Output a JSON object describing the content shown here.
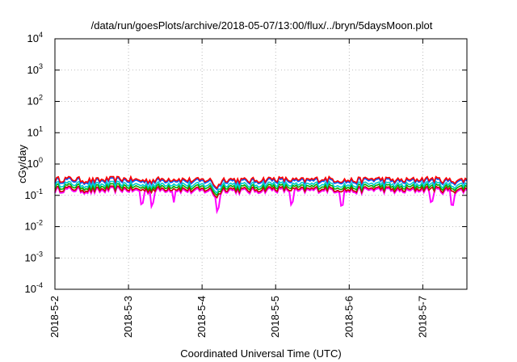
{
  "chart_data": {
    "type": "line",
    "title": "/data/run/goesPlots/archive/2018-05-07/13:00/flux/../bryn/5daysMoon.plot",
    "xlabel": "Coordinated Universal Time (UTC)",
    "ylabel": "cGy/day",
    "yscale": "log",
    "ylim": [
      0.0001,
      10000
    ],
    "xlim": [
      0,
      5.6
    ],
    "grid": true,
    "x_ticks": [
      {
        "x": 0,
        "label": "2018-5-2"
      },
      {
        "x": 1,
        "label": "2018-5-3"
      },
      {
        "x": 2,
        "label": "2018-5-4"
      },
      {
        "x": 3,
        "label": "2018-5-5"
      },
      {
        "x": 4,
        "label": "2018-5-6"
      },
      {
        "x": 5,
        "label": "2018-5-7"
      }
    ],
    "y_ticks": [
      {
        "v": 0.0001,
        "base": "10",
        "exp": "-4"
      },
      {
        "v": 0.001,
        "base": "10",
        "exp": "-3"
      },
      {
        "v": 0.01,
        "base": "10",
        "exp": "-2"
      },
      {
        "v": 0.1,
        "base": "10",
        "exp": "-1"
      },
      {
        "v": 1,
        "base": "10",
        "exp": "0"
      },
      {
        "v": 10,
        "base": "10",
        "exp": "1"
      },
      {
        "v": 100,
        "base": "10",
        "exp": "2"
      },
      {
        "v": 1000,
        "base": "10",
        "exp": "3"
      },
      {
        "v": 10000,
        "base": "10",
        "exp": "4"
      }
    ],
    "series": [
      {
        "color": "#ff00ff",
        "base": 0.145,
        "dips": true,
        "level": 0
      },
      {
        "color": "#cc0000",
        "base": 0.16,
        "dips": false,
        "level": 1
      },
      {
        "color": "#00aa00",
        "base": 0.19,
        "dips": false,
        "level": 2
      },
      {
        "color": "#00cccc",
        "base": 0.225,
        "dips": false,
        "level": 3
      },
      {
        "color": "#0055ff",
        "base": 0.29,
        "dips": false,
        "level": 4
      },
      {
        "color": "#ff0000",
        "base": 0.32,
        "dips": false,
        "level": 5
      }
    ]
  }
}
